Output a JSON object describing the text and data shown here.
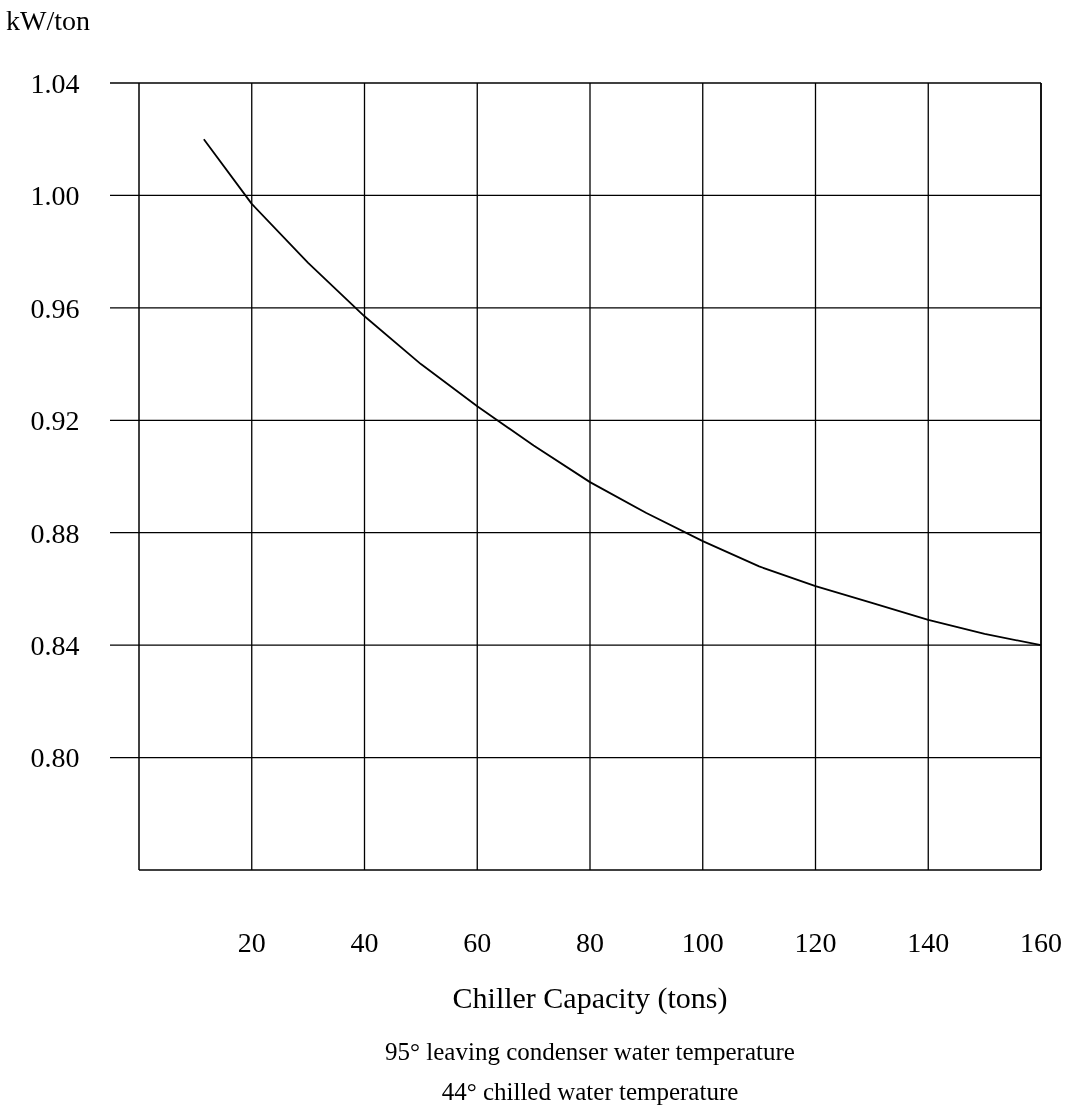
{
  "chart_data": {
    "type": "line",
    "ylabel": "kW/ton",
    "xlabel": "Chiller Capacity (tons)",
    "annotations": [
      "95° leaving condenser water temperature",
      "44° chilled water temperature"
    ],
    "xlim": [
      0,
      160
    ],
    "xticks": [
      20,
      40,
      60,
      80,
      100,
      120,
      140,
      160
    ],
    "ylim": [
      0.76,
      1.04
    ],
    "yticks": [
      {
        "value": 0.8,
        "label": "0.80"
      },
      0.84,
      0.88,
      0.92,
      0.96,
      {
        "value": 1,
        "label": "1.00"
      },
      1.04
    ],
    "grid": true,
    "series": [
      {
        "color": "#000000",
        "x": [
          11.5,
          20,
          30,
          40,
          50,
          60,
          70,
          80,
          90,
          100,
          110,
          120,
          130,
          140,
          150,
          160
        ],
        "values": [
          1.02,
          0.997,
          0.976,
          0.957,
          0.94,
          0.925,
          0.911,
          0.898,
          0.887,
          0.877,
          0.868,
          0.861,
          0.855,
          0.849,
          0.844,
          0.84
        ]
      }
    ]
  }
}
